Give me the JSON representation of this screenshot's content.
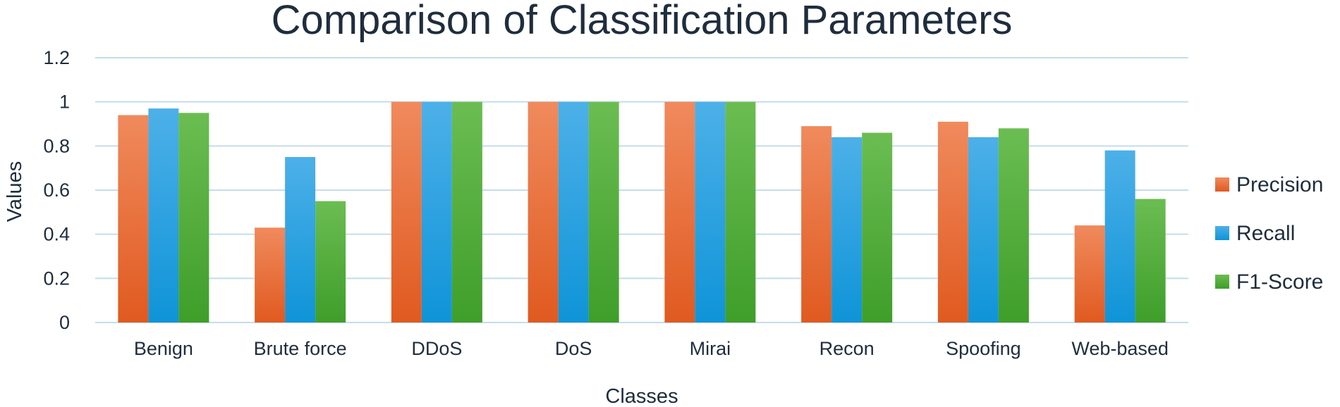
{
  "chart_data": {
    "type": "bar",
    "title": "Comparison of Classification Parameters",
    "xlabel": "Classes",
    "ylabel": "Values",
    "ylim": [
      0,
      1.2
    ],
    "yticks": [
      "0",
      "0.2",
      "0.4",
      "0.6",
      "0.8",
      "1",
      "1.2"
    ],
    "grid": true,
    "legend_position": "right",
    "categories": [
      "Benign",
      "Brute force",
      "DDoS",
      "DoS",
      "Mirai",
      "Recon",
      "Spoofing",
      "Web-based"
    ],
    "series": [
      {
        "name": "Precision",
        "color_top": "#f08a5d",
        "color_bottom": "#e05a20",
        "values": [
          0.94,
          0.43,
          1.0,
          1.0,
          1.0,
          0.89,
          0.91,
          0.44
        ]
      },
      {
        "name": "Recall",
        "color_top": "#4db0e8",
        "color_bottom": "#0f94d8",
        "values": [
          0.97,
          0.75,
          1.0,
          1.0,
          1.0,
          0.84,
          0.84,
          0.78
        ]
      },
      {
        "name": "F1-Score",
        "color_top": "#6bbd52",
        "color_bottom": "#3f9e2a",
        "values": [
          0.95,
          0.55,
          1.0,
          1.0,
          1.0,
          0.86,
          0.88,
          0.56
        ]
      }
    ]
  }
}
